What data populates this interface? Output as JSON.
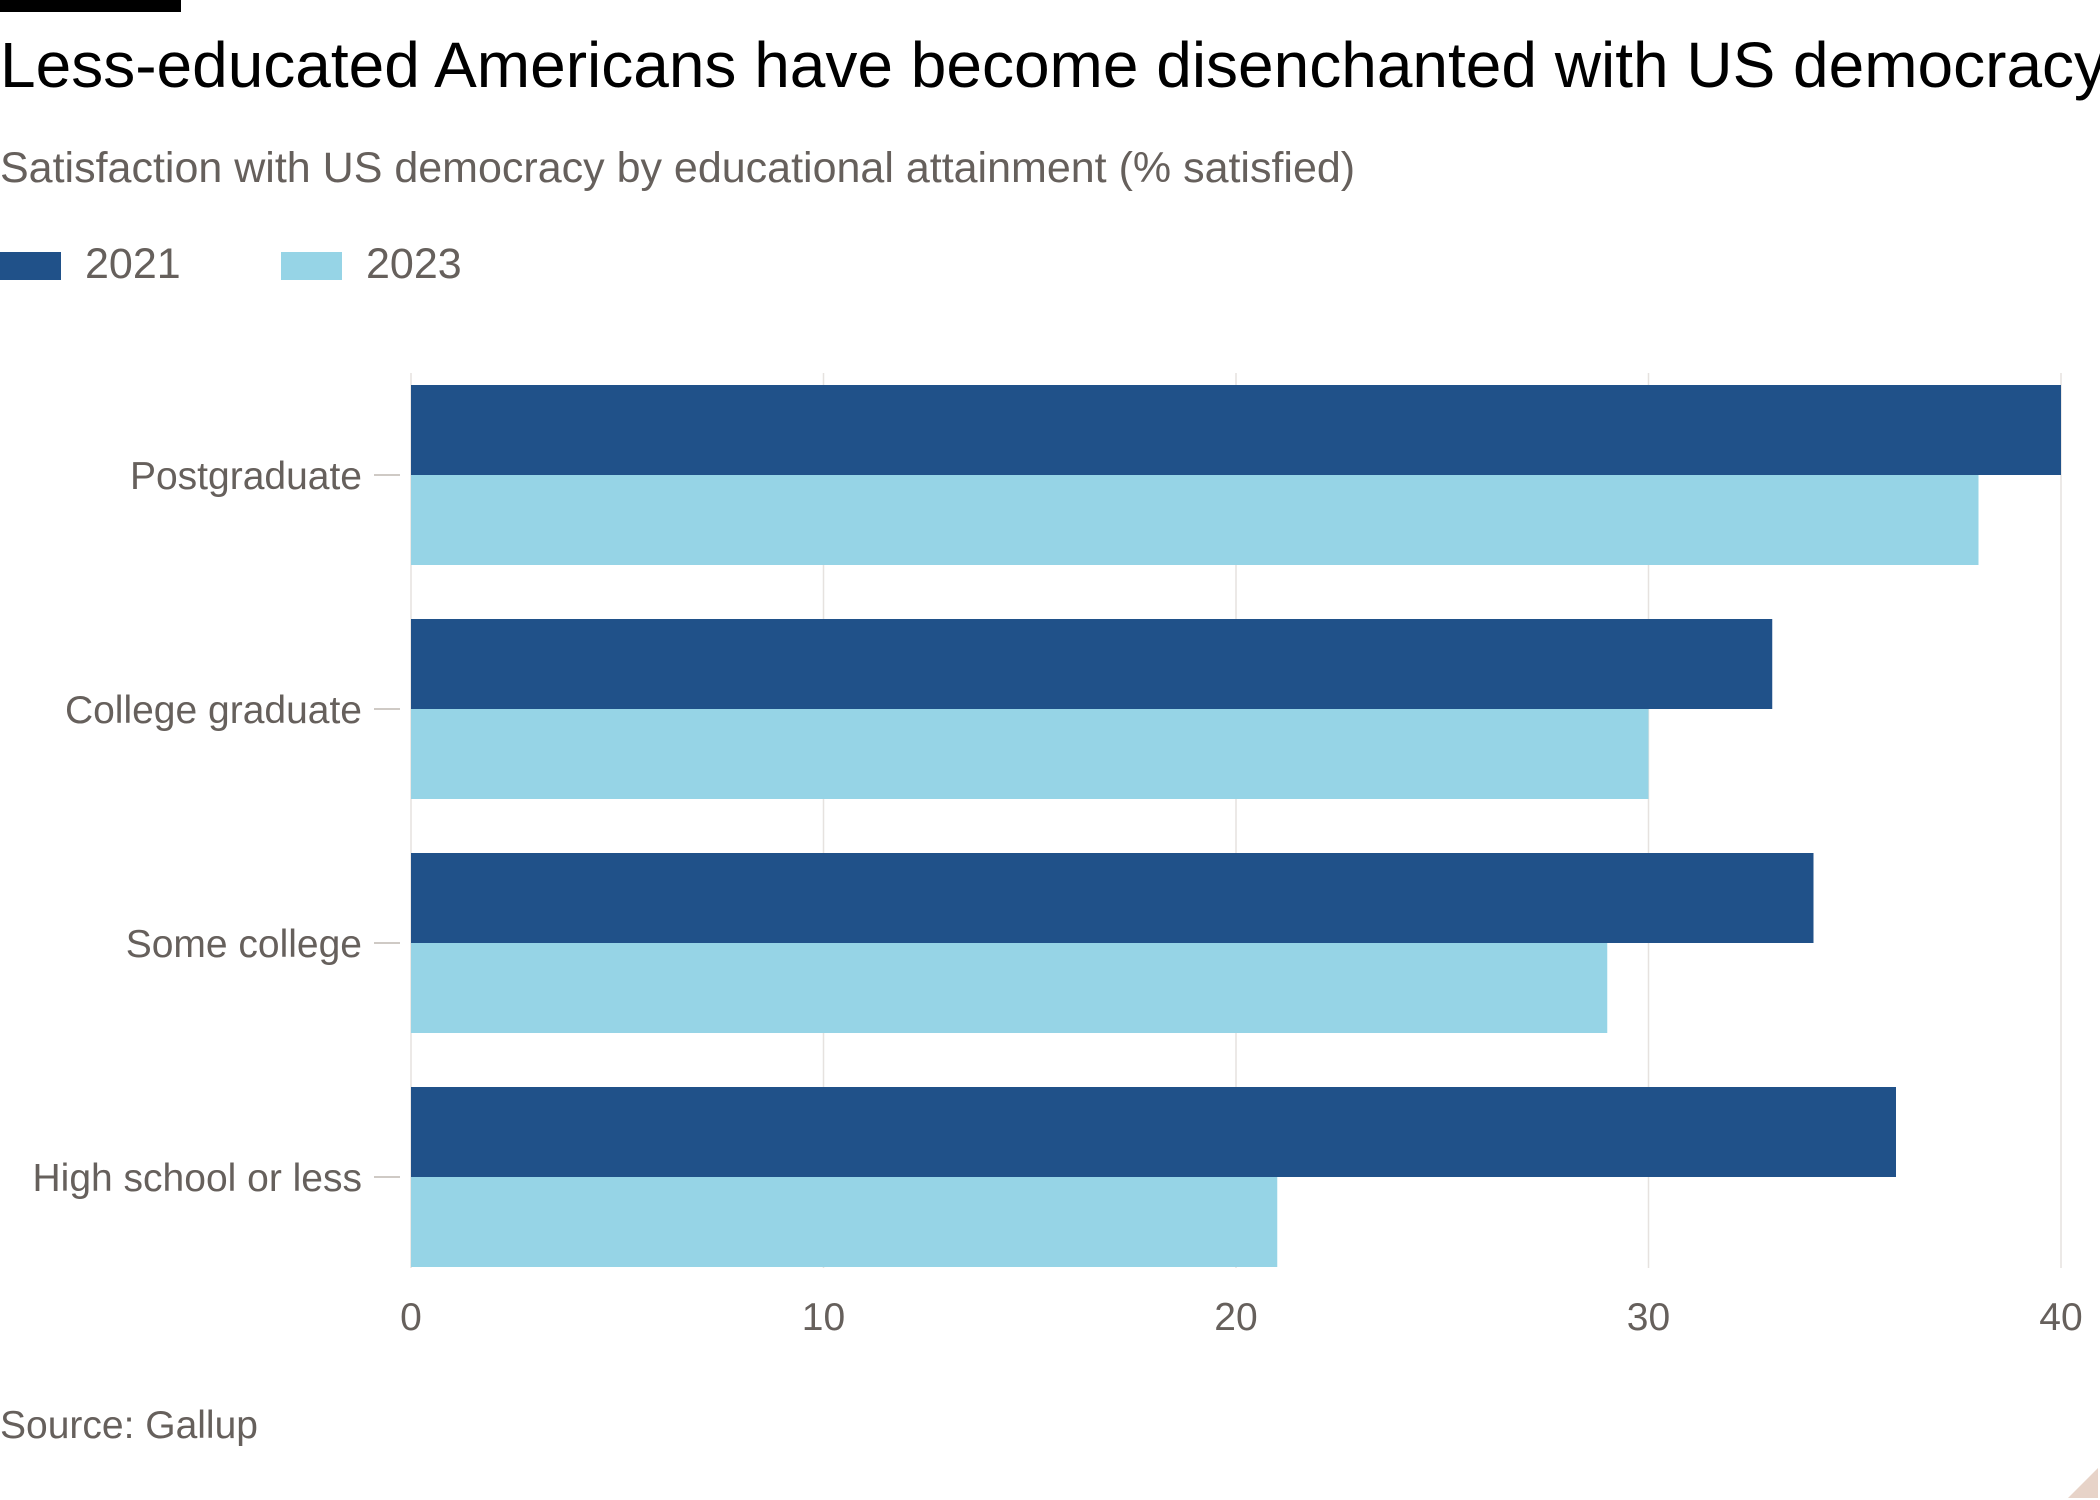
{
  "header": {
    "title": "Less-educated Americans have become disenchanted with US democracy",
    "subtitle": "Satisfaction with US democracy by educational attainment (% satisfied)"
  },
  "legend": {
    "items": [
      {
        "label": "2021",
        "color": "#205189"
      },
      {
        "label": "2023",
        "color": "#96d4e6"
      }
    ]
  },
  "footer": {
    "source": "Source: Gallup"
  },
  "chart_data": {
    "type": "bar",
    "orientation": "horizontal",
    "categories": [
      "Postgraduate",
      "College graduate",
      "Some college",
      "High school or less"
    ],
    "series": [
      {
        "name": "2021",
        "color": "#205189",
        "values": [
          40,
          33,
          34,
          36
        ]
      },
      {
        "name": "2023",
        "color": "#96d4e6",
        "values": [
          38,
          30,
          29,
          21
        ]
      }
    ],
    "xlim": [
      0,
      40
    ],
    "xticks": [
      0,
      10,
      20,
      30,
      40
    ],
    "title": "Less-educated Americans have become disenchanted with US democracy",
    "subtitle": "Satisfaction with US democracy by educational attainment (% satisfied)",
    "xlabel": "",
    "ylabel": "",
    "grid": true,
    "legend_position": "top-left"
  }
}
